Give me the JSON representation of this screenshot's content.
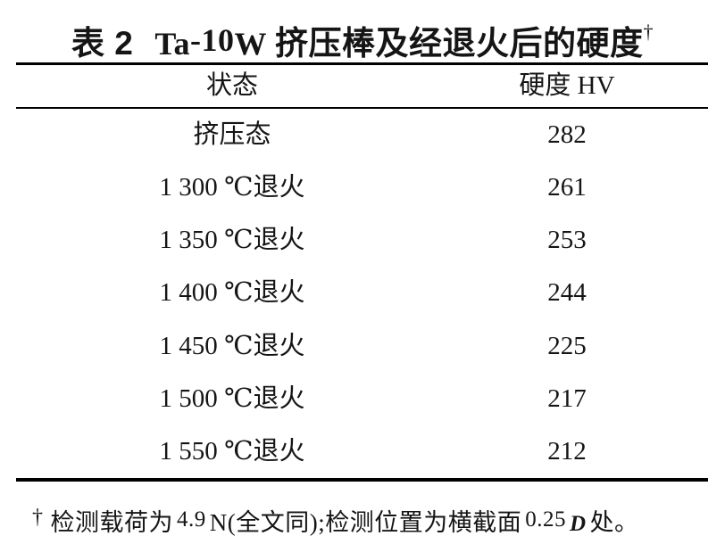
{
  "page": {
    "background": "#ffffff",
    "text_color": "#151515",
    "rule_color": "#000000"
  },
  "caption": {
    "label": "表 2",
    "alloy_base": "Ta",
    "alloy_raised": "-10",
    "alloy_suffix": "W",
    "title_text": "挤压棒及经退火后的硬度",
    "dagger": "†"
  },
  "table": {
    "columns": [
      "状态",
      "硬度 HV"
    ],
    "rows": [
      {
        "state": "挤压态",
        "hardness": "282"
      },
      {
        "state": "1 300 ℃退火",
        "hardness": "261"
      },
      {
        "state": "1 350 ℃退火",
        "hardness": "253"
      },
      {
        "state": "1 400 ℃退火",
        "hardness": "244"
      },
      {
        "state": "1 450 ℃退火",
        "hardness": "225"
      },
      {
        "state": "1 500 ℃退火",
        "hardness": "217"
      },
      {
        "state": "1 550 ℃退火",
        "hardness": "212"
      }
    ]
  },
  "footnote": {
    "marker": "†",
    "part1": "检测载荷为",
    "load_value": "4.9",
    "part2": "N(全文同);检测位置为横截面",
    "position_value": "0.25",
    "variable": "D",
    "part3": "处。"
  },
  "chart_data": {
    "type": "table",
    "title": "表 2 Ta-10W 挤压棒及经退火后的硬度†",
    "columns": [
      "状态",
      "硬度 HV"
    ],
    "categories": [
      "挤压态",
      "1 300 ℃退火",
      "1 350 ℃退火",
      "1 400 ℃退火",
      "1 450 ℃退火",
      "1 500 ℃退火",
      "1 550 ℃退火"
    ],
    "values": [
      282,
      261,
      253,
      244,
      225,
      217,
      212
    ],
    "footnote": "† 检测载荷为 4.9 N(全文同);检测位置为横截面 0.25D 处。"
  }
}
